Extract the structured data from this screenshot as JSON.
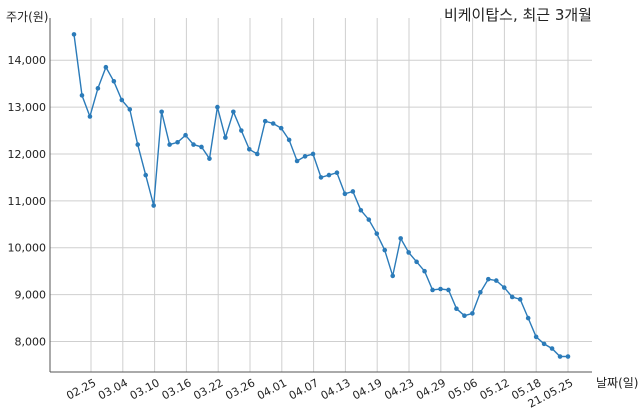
{
  "chart_data": {
    "type": "line",
    "title": "비케이탑스, 최근 3개월",
    "ylabel": "주가(원)",
    "xlabel": "날짜(일)",
    "ylim": [
      7350,
      14900
    ],
    "yticks": [
      8000,
      9000,
      10000,
      11000,
      12000,
      13000,
      14000
    ],
    "ytick_labels": [
      "8,000",
      "9,000",
      "10,000",
      "11,000",
      "12,000",
      "13,000",
      "14,000"
    ],
    "xtick_labels": [
      "02.25",
      "03.04",
      "03.10",
      "03.16",
      "03.22",
      "03.26",
      "04.01",
      "04.07",
      "04.13",
      "04.19",
      "04.23",
      "04.29",
      "05.06",
      "05.12",
      "05.18",
      "21.05.25"
    ],
    "grid": true,
    "line_color": "#2b7bb9",
    "series": [
      {
        "values": [
          14550,
          13250,
          12800,
          13400,
          13850,
          13550,
          13150,
          12950,
          12200,
          11550,
          10900,
          12900,
          12200,
          12250,
          12400,
          12200,
          12150,
          11900,
          13000,
          12350,
          12900,
          12500,
          12100,
          12000,
          12700,
          12650,
          12550,
          12300,
          11850,
          11950,
          12000,
          11500,
          11550,
          11600,
          11150,
          11200,
          10800,
          10600,
          10300,
          9950,
          9400,
          10200,
          9900,
          9700,
          9500,
          9100,
          9120,
          9100,
          8700,
          8550,
          8600,
          9050,
          9330,
          9300,
          9150,
          8950,
          8900,
          8500,
          8100,
          7950,
          7850,
          7680,
          7680
        ]
      }
    ]
  }
}
